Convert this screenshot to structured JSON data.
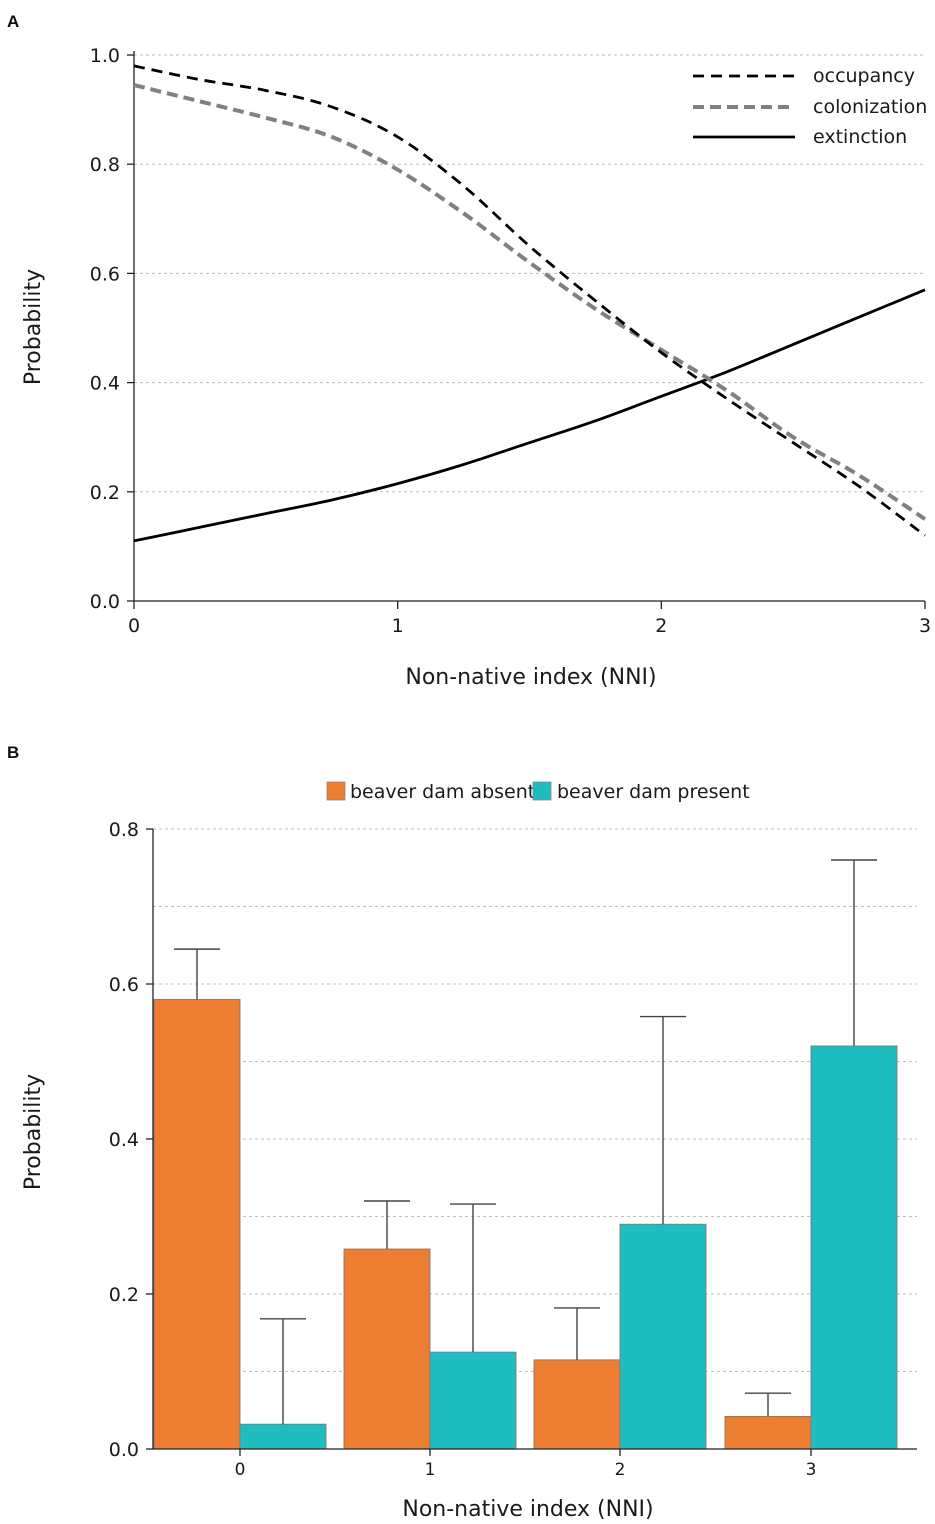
{
  "chart_data": [
    {
      "panel": "A",
      "type": "line",
      "xlabel": "Non-native index (NNI)",
      "ylabel": "Probability",
      "xlim": [
        0,
        3
      ],
      "ylim": [
        0,
        1
      ],
      "x_ticks": [
        "0",
        "1",
        "2",
        "3"
      ],
      "y_ticks": [
        "0.0",
        "0.2",
        "0.4",
        "0.6",
        "0.8",
        "1.0"
      ],
      "grid": "horizontal-dashed",
      "legend_position": "top-right",
      "series": [
        {
          "name": "occupancy",
          "style": "dashed",
          "color": "#000000",
          "x": [
            0,
            0.25,
            0.5,
            0.75,
            1.0,
            1.25,
            1.5,
            1.75,
            2.0,
            2.25,
            2.5,
            2.75,
            3.0
          ],
          "y": [
            0.98,
            0.955,
            0.935,
            0.905,
            0.85,
            0.76,
            0.65,
            0.55,
            0.455,
            0.37,
            0.29,
            0.21,
            0.12
          ]
        },
        {
          "name": "colonization",
          "style": "dashed-thick",
          "color": "#808080",
          "x": [
            0,
            0.25,
            0.5,
            0.75,
            1.0,
            1.25,
            1.5,
            1.75,
            2.0,
            2.25,
            2.5,
            2.75,
            3.0
          ],
          "y": [
            0.945,
            0.915,
            0.885,
            0.85,
            0.79,
            0.71,
            0.62,
            0.535,
            0.46,
            0.385,
            0.3,
            0.23,
            0.15
          ]
        },
        {
          "name": "extinction",
          "style": "solid",
          "color": "#000000",
          "x": [
            0,
            0.25,
            0.5,
            0.75,
            1.0,
            1.25,
            1.5,
            1.75,
            2.0,
            2.25,
            2.5,
            2.75,
            3.0
          ],
          "y": [
            0.11,
            0.135,
            0.16,
            0.185,
            0.215,
            0.25,
            0.29,
            0.33,
            0.375,
            0.42,
            0.47,
            0.52,
            0.57
          ]
        }
      ]
    },
    {
      "panel": "B",
      "type": "bar",
      "xlabel": "Non-native index (NNI)",
      "ylabel": "Probability",
      "ylim": [
        0,
        0.8
      ],
      "y_ticks": [
        "0.0",
        "0.2",
        "0.4",
        "0.6",
        "0.8"
      ],
      "categories": [
        "0",
        "1",
        "2",
        "3"
      ],
      "grid": "horizontal-dashed",
      "legend_position": "top-center",
      "series": [
        {
          "name": "beaver dam absent",
          "color": "#ED7D31",
          "values": [
            0.58,
            0.258,
            0.115,
            0.042
          ],
          "error_upper": [
            0.645,
            0.32,
            0.182,
            0.072
          ]
        },
        {
          "name": "beaver dam present",
          "color": "#1FBCC0",
          "values": [
            0.032,
            0.125,
            0.29,
            0.52
          ],
          "error_upper": [
            0.168,
            0.316,
            0.558,
            0.76
          ]
        }
      ]
    }
  ]
}
